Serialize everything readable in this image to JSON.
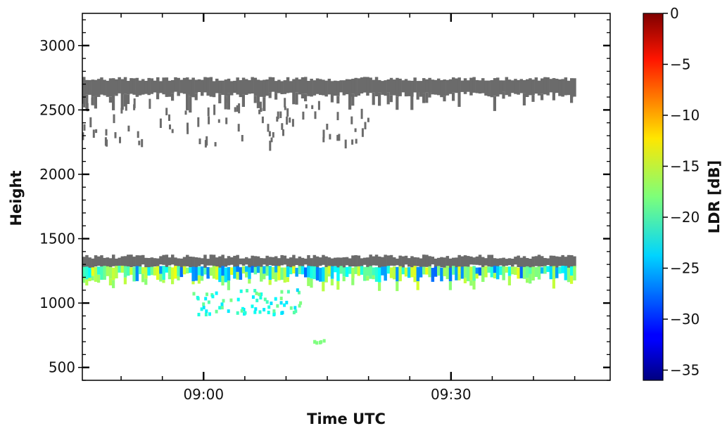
{
  "chart_data": {
    "type": "heatmap",
    "xlabel": "Time UTC",
    "ylabel": "Height",
    "xlim_minutes_since_0840": [
      5.3,
      69.3
    ],
    "ylim": [
      400,
      3250
    ],
    "x_ticks": [
      {
        "label": "09:00",
        "value": "09:00"
      },
      {
        "label": "09:30",
        "value": "09:30"
      }
    ],
    "y_ticks": [
      {
        "label": "500",
        "value": 500
      },
      {
        "label": "1000",
        "value": 1000
      },
      {
        "label": "1500",
        "value": 1500
      },
      {
        "label": "2000",
        "value": 2000
      },
      {
        "label": "2500",
        "value": 2500
      },
      {
        "label": "3000",
        "value": 3000
      }
    ],
    "colorbar": {
      "label": "LDR [dB]",
      "range": [
        -36,
        0
      ],
      "colormap": "jet",
      "ticks": [
        {
          "label": "0",
          "value": 0
        },
        {
          "label": "−5",
          "value": -5
        },
        {
          "label": "−10",
          "value": -10
        },
        {
          "label": "−15",
          "value": -15
        },
        {
          "label": "−20",
          "value": -20
        },
        {
          "label": "−25",
          "value": -25
        },
        {
          "label": "−30",
          "value": -30
        },
        {
          "label": "−35",
          "value": -35
        }
      ]
    },
    "masked_color": "#6b6b6b",
    "regions": [
      {
        "name": "upper cloud layer (masked)",
        "time_range": [
          "08:35",
          "09:45"
        ],
        "height_range": [
          2630,
          2740
        ],
        "ldr": null
      },
      {
        "name": "upper cloud virga (masked)",
        "time_range": [
          "08:45",
          "09:20"
        ],
        "height_range": [
          2250,
          2600
        ],
        "ldr": null
      },
      {
        "name": "lower cloud top (masked)",
        "time_range": [
          "08:35",
          "09:45"
        ],
        "height_range": [
          1290,
          1360
        ],
        "ldr": null
      },
      {
        "name": "lower cloud base layer",
        "time_range": [
          "08:35",
          "09:45"
        ],
        "height_range": [
          1180,
          1290
        ],
        "ldr": [
          -28,
          -14
        ]
      },
      {
        "name": "falling precipitation streaks",
        "time_range": [
          "08:58",
          "09:12"
        ],
        "height_range": [
          920,
          1120
        ],
        "ldr": [
          -24,
          -18
        ]
      },
      {
        "name": "isolated echo",
        "time_range": [
          "09:13",
          "09:15"
        ],
        "height_range": [
          700,
          720
        ],
        "ldr": [
          -18,
          -18
        ]
      }
    ]
  }
}
